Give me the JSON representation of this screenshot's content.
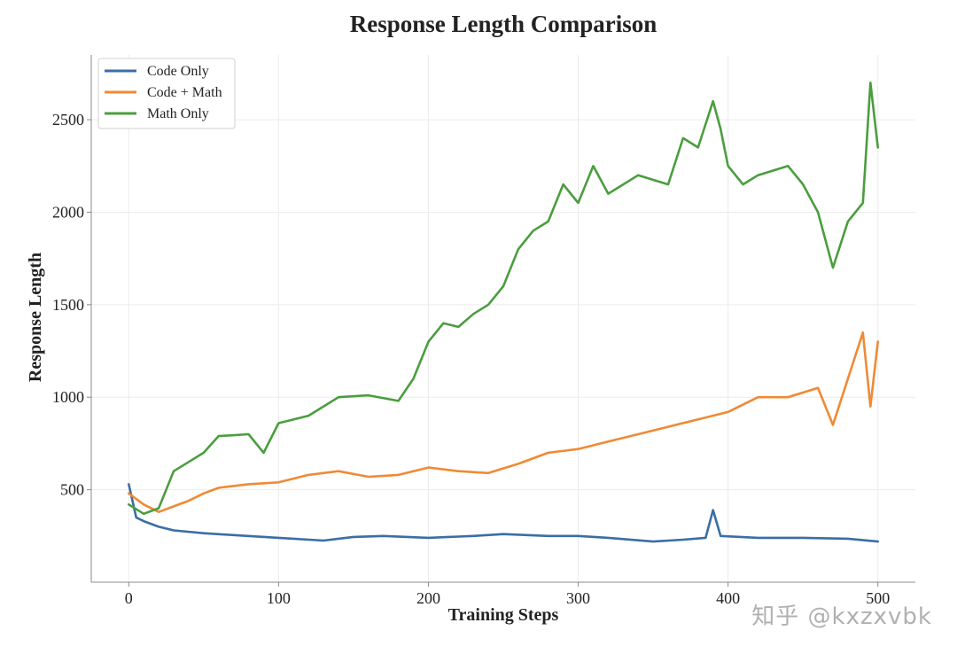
{
  "chart_data": {
    "type": "line",
    "title": "Response Length Comparison",
    "xlabel": "Training Steps",
    "ylabel": "Response Length",
    "xlim": [
      -25,
      525
    ],
    "ylim": [
      0,
      2850
    ],
    "xticks": [
      0,
      100,
      200,
      300,
      400,
      500
    ],
    "yticks": [
      500,
      1000,
      1500,
      2000,
      2500
    ],
    "grid": true,
    "legend_position": "top-left",
    "series": [
      {
        "name": "Code Only",
        "color": "#3a6ea5",
        "points": [
          [
            0,
            530
          ],
          [
            5,
            350
          ],
          [
            10,
            330
          ],
          [
            20,
            300
          ],
          [
            30,
            280
          ],
          [
            50,
            265
          ],
          [
            70,
            255
          ],
          [
            100,
            240
          ],
          [
            130,
            225
          ],
          [
            150,
            245
          ],
          [
            170,
            250
          ],
          [
            200,
            240
          ],
          [
            230,
            250
          ],
          [
            250,
            260
          ],
          [
            280,
            250
          ],
          [
            300,
            250
          ],
          [
            320,
            240
          ],
          [
            350,
            220
          ],
          [
            370,
            230
          ],
          [
            385,
            240
          ],
          [
            390,
            390
          ],
          [
            395,
            250
          ],
          [
            420,
            240
          ],
          [
            450,
            240
          ],
          [
            480,
            235
          ],
          [
            500,
            220
          ]
        ]
      },
      {
        "name": "Code + Math",
        "color": "#ef8a35",
        "points": [
          [
            0,
            480
          ],
          [
            10,
            420
          ],
          [
            20,
            380
          ],
          [
            30,
            410
          ],
          [
            40,
            440
          ],
          [
            50,
            480
          ],
          [
            60,
            510
          ],
          [
            80,
            530
          ],
          [
            100,
            540
          ],
          [
            120,
            580
          ],
          [
            140,
            600
          ],
          [
            160,
            570
          ],
          [
            180,
            580
          ],
          [
            200,
            620
          ],
          [
            220,
            600
          ],
          [
            240,
            590
          ],
          [
            260,
            640
          ],
          [
            280,
            700
          ],
          [
            300,
            720
          ],
          [
            320,
            760
          ],
          [
            340,
            800
          ],
          [
            360,
            840
          ],
          [
            380,
            880
          ],
          [
            400,
            920
          ],
          [
            420,
            1000
          ],
          [
            440,
            1000
          ],
          [
            460,
            1050
          ],
          [
            470,
            850
          ],
          [
            480,
            1100
          ],
          [
            490,
            1350
          ],
          [
            495,
            950
          ],
          [
            500,
            1300
          ]
        ]
      },
      {
        "name": "Math Only",
        "color": "#4a9e3e",
        "points": [
          [
            0,
            420
          ],
          [
            10,
            370
          ],
          [
            20,
            400
          ],
          [
            30,
            600
          ],
          [
            40,
            650
          ],
          [
            50,
            700
          ],
          [
            60,
            790
          ],
          [
            80,
            800
          ],
          [
            90,
            700
          ],
          [
            100,
            860
          ],
          [
            120,
            900
          ],
          [
            140,
            1000
          ],
          [
            160,
            1010
          ],
          [
            180,
            980
          ],
          [
            190,
            1100
          ],
          [
            200,
            1300
          ],
          [
            210,
            1400
          ],
          [
            220,
            1380
          ],
          [
            230,
            1450
          ],
          [
            240,
            1500
          ],
          [
            250,
            1600
          ],
          [
            260,
            1800
          ],
          [
            270,
            1900
          ],
          [
            280,
            1950
          ],
          [
            290,
            2150
          ],
          [
            300,
            2050
          ],
          [
            310,
            2250
          ],
          [
            320,
            2100
          ],
          [
            340,
            2200
          ],
          [
            360,
            2150
          ],
          [
            370,
            2400
          ],
          [
            380,
            2350
          ],
          [
            390,
            2600
          ],
          [
            395,
            2450
          ],
          [
            400,
            2250
          ],
          [
            410,
            2150
          ],
          [
            420,
            2200
          ],
          [
            440,
            2250
          ],
          [
            450,
            2150
          ],
          [
            460,
            2000
          ],
          [
            470,
            1700
          ],
          [
            480,
            1950
          ],
          [
            490,
            2050
          ],
          [
            495,
            2700
          ],
          [
            500,
            2350
          ]
        ]
      }
    ]
  },
  "watermark": "知乎 @kxzxvbk"
}
